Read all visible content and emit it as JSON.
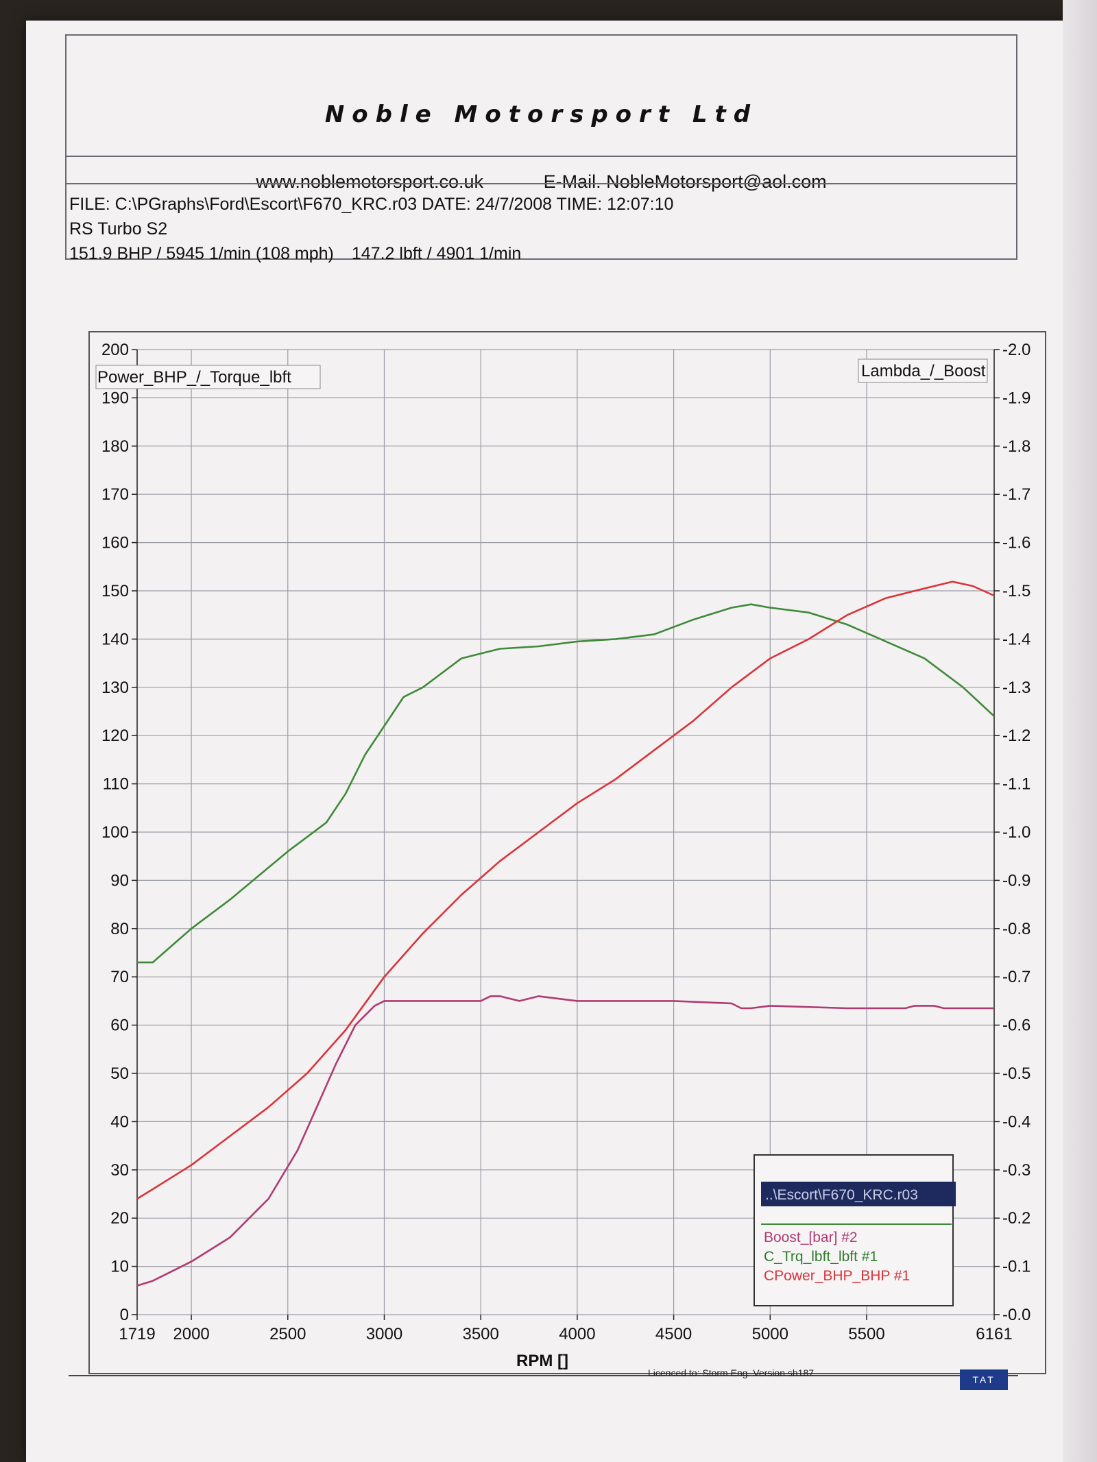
{
  "header": {
    "company": "Noble Motorsport Ltd",
    "website": "www.noblemotorsport.co.uk",
    "email": "E-Mail. NobleMotorsport@aol.com",
    "file_line": "FILE: C:\\PGraphs\\Ford\\Escort\\F670_KRC.r03  DATE: 24/7/2008  TIME: 12:07:10",
    "vehicle": "RS Turbo S2",
    "peak_power": "151.9 BHP / 5945 1/min (108 mph)",
    "peak_torque": "147.2 lbft / 4901 1/min"
  },
  "footer": {
    "licence": "Licenced to: Storm Eng.  Version sh187",
    "logo": "TAT"
  },
  "colors": {
    "torque": "#3f8a3a",
    "power": "#d8343a",
    "boost": "#b03a72",
    "grid": "#9a9ca6",
    "legend_header": "#1e2a5e"
  },
  "chart_data": {
    "type": "line",
    "xlabel": "RPM []",
    "left_axis_label": "Power_BHP_/_Torque_lbft",
    "right_axis_label": "Lambda_/_Boost",
    "xlim": [
      1719,
      6161
    ],
    "ylim_left": [
      0,
      200
    ],
    "ylim_right": [
      -0.0,
      -2.0
    ],
    "x_ticks": [
      "1719",
      "2000",
      "2500",
      "3000",
      "3500",
      "4000",
      "4500",
      "5000",
      "5500",
      "6161"
    ],
    "y_left_ticks": [
      "0",
      "10",
      "20",
      "30",
      "40",
      "50",
      "60",
      "70",
      "80",
      "90",
      "100",
      "110",
      "120",
      "130",
      "140",
      "150",
      "160",
      "170",
      "180",
      "190",
      "200"
    ],
    "y_right_ticks": [
      "-0.0",
      "-0.1",
      "-0.2",
      "-0.3",
      "-0.4",
      "-0.5",
      "-0.6",
      "-0.7",
      "-0.8",
      "-0.9",
      "-1.0",
      "-1.1",
      "-1.2",
      "-1.3",
      "-1.4",
      "-1.5",
      "-1.6",
      "-1.7",
      "-1.8",
      "-1.9",
      "-2.0"
    ],
    "grid": true,
    "legend_position": "bottom-right",
    "legend_title": "..\\Escort\\F670_KRC.r03",
    "series": [
      {
        "name": "Boost_[bar] #2",
        "axis": "right",
        "x": [
          1719,
          1800,
          2000,
          2200,
          2400,
          2550,
          2650,
          2750,
          2850,
          2950,
          3000,
          3200,
          3400,
          3500,
          3550,
          3600,
          3700,
          3800,
          4000,
          4200,
          4500,
          4800,
          4850,
          4900,
          5000,
          5400,
          5700,
          5750,
          5850,
          5900,
          6161
        ],
        "values": [
          -0.06,
          -0.07,
          -0.11,
          -0.16,
          -0.24,
          -0.34,
          -0.43,
          -0.52,
          -0.6,
          -0.64,
          -0.65,
          -0.65,
          -0.65,
          -0.65,
          -0.66,
          -0.66,
          -0.65,
          -0.66,
          -0.65,
          -0.65,
          -0.65,
          -0.645,
          -0.635,
          -0.635,
          -0.64,
          -0.635,
          -0.635,
          -0.64,
          -0.64,
          -0.635,
          -0.635
        ]
      },
      {
        "name": "C_Trq_lbft_lbft #1",
        "axis": "left",
        "x": [
          1719,
          1800,
          2000,
          2200,
          2500,
          2700,
          2800,
          2900,
          3000,
          3100,
          3200,
          3300,
          3400,
          3500,
          3600,
          3800,
          4000,
          4200,
          4400,
          4600,
          4800,
          4901,
          5000,
          5200,
          5400,
          5600,
          5800,
          6000,
          6161
        ],
        "values": [
          73,
          73,
          80,
          86,
          96,
          102,
          108,
          116,
          122,
          128,
          130,
          133,
          136,
          137,
          138,
          138.5,
          139.5,
          140,
          141,
          144,
          146.5,
          147.2,
          146.5,
          145.5,
          143,
          139.5,
          136,
          130,
          124
        ]
      },
      {
        "name": "CPower_BHP_BHP #1",
        "axis": "left",
        "x": [
          1719,
          1800,
          2000,
          2200,
          2400,
          2600,
          2800,
          3000,
          3200,
          3400,
          3600,
          3800,
          4000,
          4200,
          4400,
          4600,
          4800,
          5000,
          5200,
          5400,
          5600,
          5800,
          5945,
          6050,
          6161
        ],
        "values": [
          24,
          26,
          31,
          37,
          43,
          50,
          59,
          70,
          79,
          87,
          94,
          100,
          106,
          111,
          117,
          123,
          130,
          136,
          140,
          145,
          148.5,
          150.5,
          151.9,
          151,
          149
        ]
      }
    ]
  }
}
